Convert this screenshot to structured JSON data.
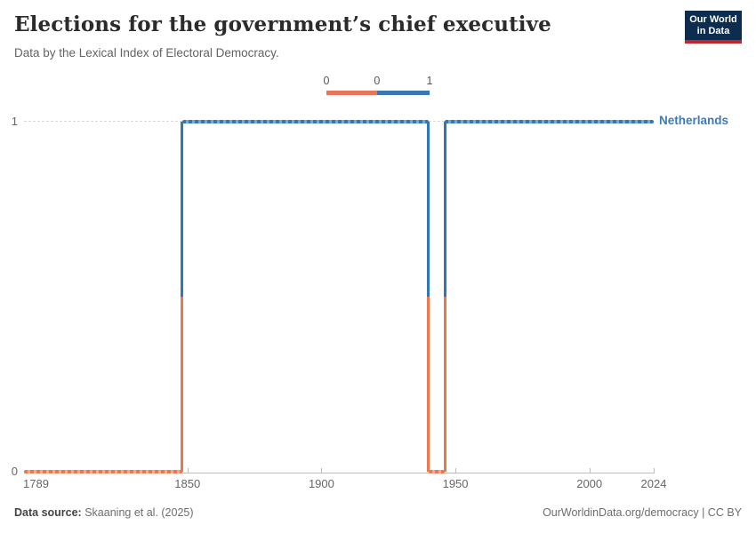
{
  "header": {
    "title": "Elections for the government’s chief executive",
    "subtitle": "Data by the Lexical Index of Electoral Democracy.",
    "logo_line1": "Our World",
    "logo_line2": "in Data"
  },
  "legend": {
    "labels": [
      "0",
      "0",
      "1"
    ],
    "bins": [
      {
        "range": "0 to 0",
        "color": "#e8745a"
      },
      {
        "range": "0 to 1",
        "color": "#3877af"
      }
    ]
  },
  "chart_data": {
    "type": "line",
    "style": "step-colored-by-value",
    "title": "Elections for the government’s chief executive",
    "entity": "Netherlands",
    "x_range": [
      1789,
      2024
    ],
    "y_range": [
      0,
      1
    ],
    "x_ticks": [
      "1789",
      "1850",
      "1900",
      "1950",
      "2000",
      "2024"
    ],
    "y_ticks": [
      "0",
      "1"
    ],
    "grid": "dashed line at y=1, solid axis at y=0",
    "legend_position": "top-center",
    "series": [
      {
        "name": "Netherlands",
        "segments": [
          {
            "from": 1789,
            "to": 1848,
            "value": 0
          },
          {
            "from": 1848,
            "to": 1940,
            "value": 1
          },
          {
            "from": 1940,
            "to": 1946,
            "value": 0
          },
          {
            "from": 1946,
            "to": 2024,
            "value": 1
          }
        ]
      }
    ]
  },
  "colors": {
    "value0_dash": "#ec7850",
    "value0_base": "#f6a98e",
    "value1_dash": "#3377b6",
    "value1_base": "#79aad3",
    "series_label": "#3d7ab8",
    "grid": "#d8d8d8",
    "axis": "#bdbdbd",
    "tick_label": "#666666",
    "logo_bg": "#0d2d4e",
    "logo_red": "#c0272d"
  },
  "footer": {
    "source_label": "Data source:",
    "source_value": "Skaaning et al. (2025)",
    "right_text": "OurWorldinData.org/democracy | CC BY"
  }
}
